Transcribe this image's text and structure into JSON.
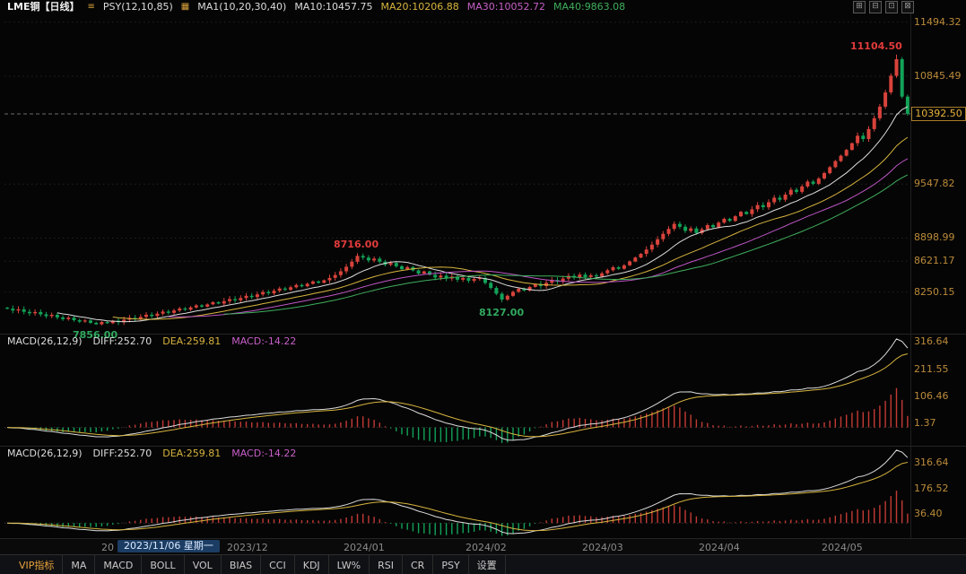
{
  "topbar": {
    "symbol": "LME铜【日线】",
    "menu_icon": "≡",
    "psy": "PSY(12,10,85)",
    "tool_icon": "▦",
    "ma_group": "MA1(10,20,30,40)",
    "ma10": "MA10:10457.75",
    "ma20": "MA20:10206.88",
    "ma30": "MA30:10052.72",
    "ma40": "MA40:9863.08",
    "window_icons": [
      "⊞",
      "⊟",
      "⊡",
      "⊠"
    ]
  },
  "main_axis": {
    "labels": [
      11494.32,
      10845.49,
      9547.82,
      8898.99,
      8621.17,
      8250.15
    ],
    "last_price": "10392.50",
    "last_price_value": 10392.5
  },
  "macd1": {
    "title": "MACD(26,12,9)",
    "diff": "DIFF:252.70",
    "dea": "DEA:259.81",
    "macd": "MACD:-14.22",
    "axis": [
      316.64,
      211.55,
      106.46,
      1.37
    ]
  },
  "macd2": {
    "title": "MACD(26,12,9)",
    "diff": "DIFF:252.70",
    "dea": "DEA:259.81",
    "macd": "MACD:-14.22",
    "axis": [
      316.64,
      176.52,
      36.4
    ]
  },
  "date_axis": {
    "pre_tick": {
      "label": "20",
      "index": 18
    },
    "highlight": {
      "label": "2023/11/06 星期一",
      "index": 26
    },
    "months": [
      {
        "label": "2023/12",
        "index": 43
      },
      {
        "label": "2024/01",
        "index": 64
      },
      {
        "label": "2024/02",
        "index": 86
      },
      {
        "label": "2024/03",
        "index": 107
      },
      {
        "label": "2024/04",
        "index": 128
      },
      {
        "label": "2024/05",
        "index": 150
      }
    ]
  },
  "toolbar": {
    "items": [
      "VIP指标",
      "MA",
      "MACD",
      "BOLL",
      "VOL",
      "BIAS",
      "CCI",
      "KDJ",
      "LW%",
      "RSI",
      "CR",
      "PSY",
      "设置"
    ]
  },
  "colors": {
    "up": "#d8433b",
    "down": "#12a258",
    "ma10": "#dcdcdc",
    "ma20": "#d7b43e",
    "ma30": "#bd55c4",
    "ma40": "#3fae5c",
    "axis_text": "#bb8b3a",
    "diff": "#dcdcdc",
    "dea": "#d7b43e",
    "hist_up": "#c23a34",
    "hist_down": "#12a258",
    "last_price": "#e8b23a"
  },
  "chart_data": {
    "type": "candlestick",
    "title": "LME铜 日线 (LME Copper daily candlestick with MA(10,20,30,40) and two MACD(26,12,9) panels)",
    "x_range": "2023/10 - 2024/05",
    "price_range": [
      7750,
      11600
    ],
    "closes": [
      8050,
      8028,
      8042,
      8012,
      7995,
      8010,
      7982,
      7960,
      7976,
      7945,
      7925,
      7942,
      7912,
      7895,
      7908,
      7880,
      7862,
      7890,
      7875,
      7905,
      7888,
      7918,
      7940,
      7925,
      7952,
      7978,
      7962,
      7990,
      8015,
      8000,
      8028,
      8052,
      8038,
      8065,
      8090,
      8075,
      8102,
      8128,
      8112,
      8140,
      8165,
      8150,
      8178,
      8205,
      8190,
      8222,
      8250,
      8235,
      8265,
      8292,
      8278,
      8308,
      8335,
      8320,
      8350,
      8378,
      8362,
      8392,
      8420,
      8455,
      8500,
      8555,
      8615,
      8685,
      8665,
      8630,
      8652,
      8615,
      8578,
      8600,
      8560,
      8525,
      8550,
      8510,
      8472,
      8498,
      8458,
      8425,
      8448,
      8412,
      8435,
      8398,
      8420,
      8385,
      8408,
      8420,
      8360,
      8300,
      8230,
      8160,
      8205,
      8252,
      8290,
      8268,
      8312,
      8345,
      8322,
      8362,
      8395,
      8375,
      8412,
      8445,
      8425,
      8460,
      8430,
      8452,
      8438,
      8475,
      8512,
      8548,
      8530,
      8572,
      8618,
      8665,
      8710,
      8762,
      8820,
      8885,
      8950,
      9010,
      9070,
      9035,
      8985,
      9015,
      8960,
      9005,
      9055,
      9030,
      9085,
      9130,
      9105,
      9162,
      9215,
      9188,
      9245,
      9295,
      9270,
      9330,
      9385,
      9360,
      9422,
      9480,
      9455,
      9520,
      9578,
      9552,
      9615,
      9680,
      9752,
      9825,
      9890,
      9960,
      10040,
      10130,
      10090,
      10210,
      10340,
      10480,
      10650,
      10850,
      11050,
      10600,
      10392.5
    ],
    "key_points": [
      {
        "index": 16,
        "price": 7856.0,
        "type": "low",
        "label": "7856.00"
      },
      {
        "index": 63,
        "price": 8716.0,
        "type": "high",
        "label": "8716.00"
      },
      {
        "index": 89,
        "price": 8127.0,
        "type": "low",
        "label": "8127.00"
      },
      {
        "index": 160,
        "price": 11104.5,
        "type": "high",
        "label": "11104.50"
      }
    ],
    "indicators": {
      "ma_periods": [
        10,
        20,
        30,
        40
      ],
      "macd_params": [
        26,
        12,
        9
      ]
    }
  }
}
